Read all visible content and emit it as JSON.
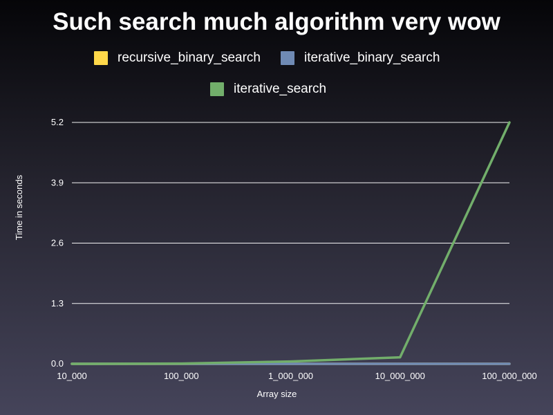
{
  "chart_data": {
    "type": "line",
    "title": "Such search much algorithm very wow",
    "xlabel": "Array size",
    "ylabel": "Time in seconds",
    "categories": [
      "10_000",
      "100_000",
      "1_000_000",
      "10_000_000",
      "100_000_000"
    ],
    "yticks": [
      "0.0",
      "1.3",
      "2.6",
      "3.9",
      "5.2"
    ],
    "ylim": [
      0,
      5.2
    ],
    "grid": true,
    "legend_position": "top",
    "series": [
      {
        "name": "recursive_binary_search",
        "color": "#ffd84a",
        "values": [
          0.0,
          0.0,
          0.0,
          0.0,
          0.0
        ]
      },
      {
        "name": "iterative_binary_search",
        "color": "#6f8ab4",
        "values": [
          0.0,
          0.0,
          0.0,
          0.0,
          0.0
        ]
      },
      {
        "name": "iterative_search",
        "color": "#72ae6b",
        "values": [
          0.0,
          0.005,
          0.05,
          0.14,
          5.2
        ]
      }
    ]
  }
}
